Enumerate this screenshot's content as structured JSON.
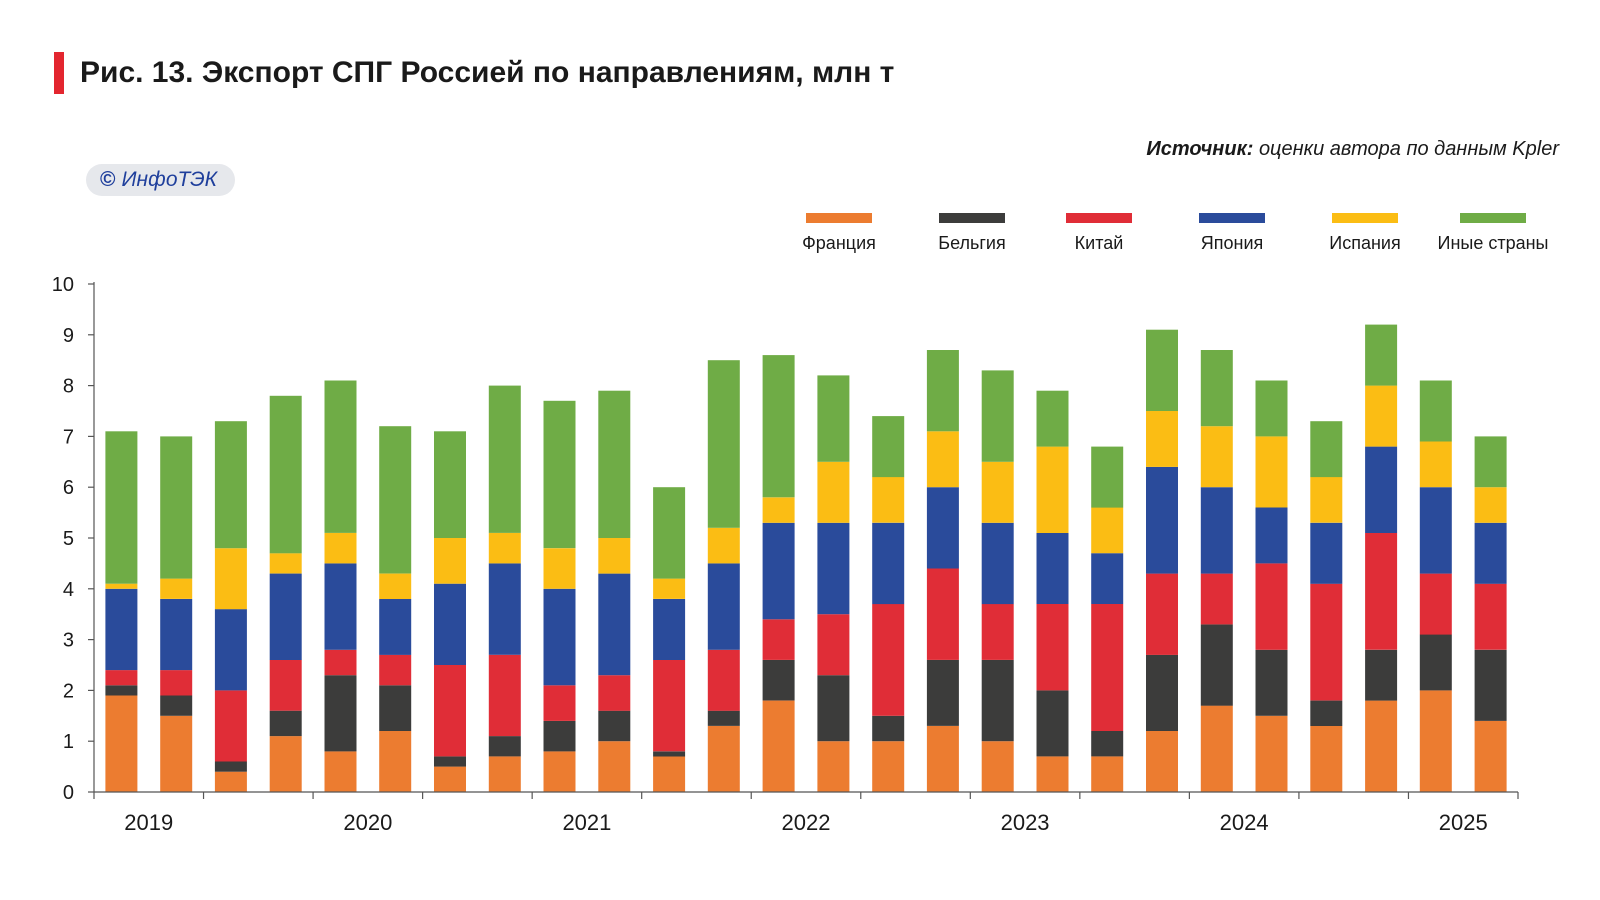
{
  "header": {
    "title": "Рис. 13. Экспорт СПГ Россией по направлениям, млн т",
    "source_label": "Источник:",
    "source_text": "оценки автора по данным Kpler",
    "logo_text": "ИнфоТЭК",
    "logo_mark": "©"
  },
  "chart_data": {
    "type": "bar",
    "stacked": true,
    "title": "Рис. 13. Экспорт СПГ Россией по направлениям, млн т",
    "xlabel": "",
    "ylabel": "",
    "ylim": [
      0,
      10
    ],
    "yticks": [
      0,
      1,
      2,
      3,
      4,
      5,
      6,
      7,
      8,
      9,
      10
    ],
    "grid": false,
    "legend_position": "top-right",
    "year_labels": [
      "2019",
      "2020",
      "2021",
      "2022",
      "2023",
      "2024",
      "2025"
    ],
    "categories": [
      "2019 Q1",
      "2019 Q2",
      "2019 Q3",
      "2019 Q4",
      "2020 Q1",
      "2020 Q2",
      "2020 Q3",
      "2020 Q4",
      "2021 Q1",
      "2021 Q2",
      "2021 Q3",
      "2021 Q4",
      "2022 Q1",
      "2022 Q2",
      "2022 Q3",
      "2022 Q4",
      "2023 Q1",
      "2023 Q2",
      "2023 Q3",
      "2023 Q4",
      "2024 Q1",
      "2024 Q2",
      "2024 Q3",
      "2024 Q4",
      "2025 Q1",
      "2025 Q2"
    ],
    "series": [
      {
        "name": "Франция",
        "color": "#ec7c30",
        "values": [
          1.9,
          1.5,
          0.4,
          1.1,
          0.8,
          1.2,
          0.5,
          0.7,
          0.8,
          1.0,
          0.7,
          1.3,
          1.8,
          1.0,
          1.0,
          1.3,
          1.0,
          0.7,
          0.7,
          1.2,
          1.7,
          1.5,
          1.3,
          1.8,
          2.0,
          1.4
        ]
      },
      {
        "name": "Бельгия",
        "color": "#3c3c3b",
        "values": [
          0.2,
          0.4,
          0.2,
          0.5,
          1.5,
          0.9,
          0.2,
          0.4,
          0.6,
          0.6,
          0.1,
          0.3,
          0.8,
          1.3,
          0.5,
          1.3,
          1.6,
          1.3,
          0.5,
          1.5,
          1.6,
          1.3,
          0.5,
          1.0,
          1.1,
          1.4
        ]
      },
      {
        "name": "Китай",
        "color": "#e02d37",
        "values": [
          0.3,
          0.5,
          1.4,
          1.0,
          0.5,
          0.6,
          1.8,
          1.6,
          0.7,
          0.7,
          1.8,
          1.2,
          0.8,
          1.2,
          2.2,
          1.8,
          1.1,
          1.7,
          2.5,
          1.6,
          1.0,
          1.7,
          2.3,
          2.3,
          1.2,
          1.3
        ]
      },
      {
        "name": "Япония",
        "color": "#2a4b9b",
        "values": [
          1.6,
          1.4,
          1.6,
          1.7,
          1.7,
          1.1,
          1.6,
          1.8,
          1.9,
          2.0,
          1.2,
          1.7,
          1.9,
          1.8,
          1.6,
          1.6,
          1.6,
          1.4,
          1.0,
          2.1,
          1.7,
          1.1,
          1.2,
          1.7,
          1.7,
          1.2
        ]
      },
      {
        "name": "Испания",
        "color": "#fbbd14",
        "values": [
          0.1,
          0.4,
          1.2,
          0.4,
          0.6,
          0.5,
          0.9,
          0.6,
          0.8,
          0.7,
          0.4,
          0.7,
          0.5,
          1.2,
          0.9,
          1.1,
          1.2,
          1.7,
          0.9,
          1.1,
          1.2,
          1.4,
          0.9,
          1.2,
          0.9,
          0.7
        ]
      },
      {
        "name": "Иные страны",
        "color": "#6fac46",
        "values": [
          3.0,
          2.8,
          2.5,
          3.1,
          3.0,
          2.9,
          2.1,
          2.9,
          2.9,
          2.9,
          1.8,
          3.3,
          2.8,
          1.7,
          1.2,
          1.6,
          1.8,
          1.1,
          1.2,
          1.6,
          1.5,
          1.1,
          1.1,
          1.2,
          1.2,
          1.0
        ]
      }
    ]
  }
}
